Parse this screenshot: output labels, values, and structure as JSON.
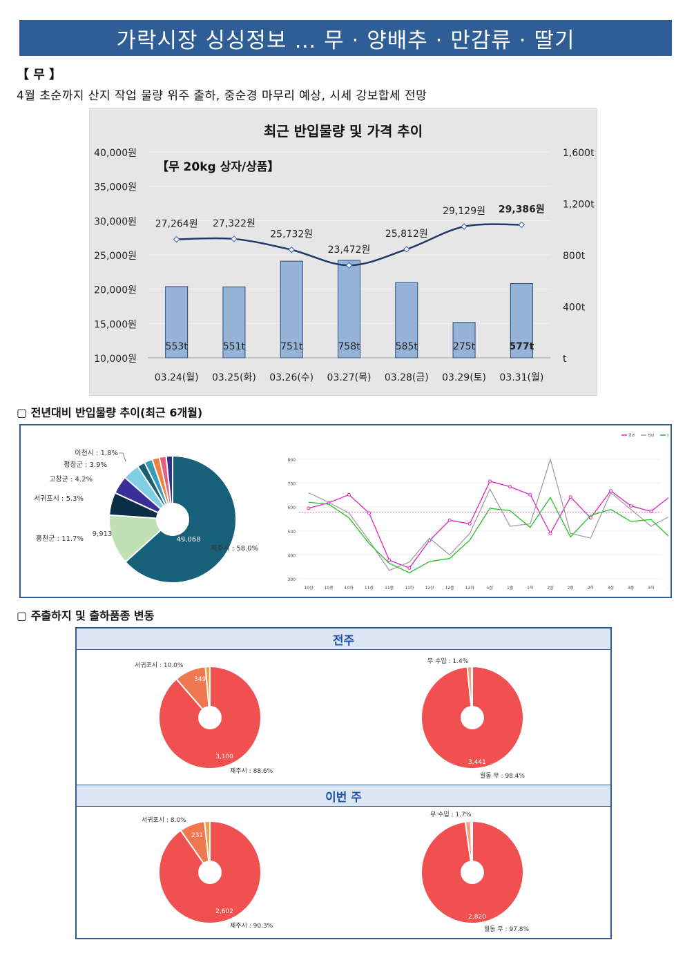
{
  "banner": {
    "title": "가락시장 싱싱정보 … 무 · 양배추 · 만감류 · 딸기"
  },
  "section": {
    "label": "【 무 】",
    "summary": "4월 초순까지 산지 작업 물량 위주 출하, 중순경 마무리 예상, 시세 강보합세 전망"
  },
  "main_chart": {
    "title": "최근 반입물량 및 가격 추이",
    "inner_label": "【무 20kg 상자/상품】"
  },
  "sub1": {
    "label": "▢ 전년대비 반입물량 추이(최근 6개월)"
  },
  "sub2": {
    "label": "▢ 주출하지 및 출하품종 변동"
  },
  "panel": {
    "prev_week": "전주",
    "this_week": "이번 주"
  },
  "colors": {
    "banner": "#2f5e96",
    "bar": "#95b3d7",
    "line": "#1f3864",
    "pie_main": "#f05050",
    "pie_second": "#f07850",
    "pie_third": "#f4a040"
  },
  "chart_data": [
    {
      "type": "bar+line",
      "title": "최근 반입물량 및 가격 추이",
      "categories": [
        "03.24(월)",
        "03.25(화)",
        "03.26(수)",
        "03.27(목)",
        "03.28(금)",
        "03.29(토)",
        "03.31(월)"
      ],
      "bar_series": {
        "values": [
          553,
          551,
          751,
          758,
          585,
          275,
          577
        ],
        "labels": [
          "553t",
          "551t",
          "751t",
          "758t",
          "585t",
          "275t",
          "577t"
        ]
      },
      "line_series": {
        "values": [
          27264,
          27322,
          25732,
          23472,
          25812,
          29129,
          29386
        ],
        "labels": [
          "27,264원",
          "27,322원",
          "25,732원",
          "23,472원",
          "25,812원",
          "29,129원",
          "29,386원"
        ]
      },
      "y_left": {
        "ticks": [
          "40,000원",
          "35,000원",
          "30,000원",
          "25,000원",
          "20,000원",
          "15,000원",
          "10,000원"
        ],
        "ylim": [
          10000,
          40000
        ]
      },
      "y_right": {
        "ticks": [
          "1,600t",
          "1,200t",
          "800t",
          "400t",
          "t"
        ],
        "ylim": [
          0,
          1600
        ]
      }
    },
    {
      "type": "pie",
      "slices": [
        {
          "name": "제주시",
          "label": "제주시 : 58.0%",
          "percent": 58.0,
          "value_label": "49,068",
          "color": "#16607a"
        },
        {
          "name": "홍천군",
          "label": "홍천군 : 11.7%",
          "percent": 11.7,
          "value_label": "9,913",
          "color": "#bfe1b5"
        },
        {
          "name": "서귀포시",
          "label": "서귀포시 : 5.3%",
          "percent": 5.3,
          "value_label": "",
          "color": "#0b2e45"
        },
        {
          "name": "고창군",
          "label": "고창군 : 4.2%",
          "percent": 4.2,
          "value_label": "",
          "color": "#3a2e98"
        },
        {
          "name": "평창군",
          "label": "평창군 : 3.9%",
          "percent": 3.9,
          "value_label": "",
          "color": "#7ecfe6"
        },
        {
          "name": "이천시",
          "label": "이천시 : 1.8%",
          "percent": 1.8,
          "value_label": "",
          "color": "#1b5e72"
        },
        {
          "name": "기타1",
          "label": "",
          "percent": 1.9,
          "value_label": "",
          "color": "#3a9ab8"
        },
        {
          "name": "기타2",
          "label": "",
          "percent": 1.7,
          "value_label": "",
          "color": "#f08040"
        },
        {
          "name": "기타3",
          "label": "",
          "percent": 1.6,
          "value_label": "",
          "color": "#e86080"
        },
        {
          "name": "기타4",
          "label": "",
          "percent": 1.5,
          "value_label": "",
          "color": "#30308a"
        }
      ]
    },
    {
      "type": "line",
      "legend": [
        "금년",
        "전년",
        "평년"
      ],
      "legend_position": "top-right",
      "x": [
        "10상",
        "10중",
        "10하",
        "11상",
        "11중",
        "11하",
        "12상",
        "12중",
        "12하",
        "1상",
        "1중",
        "1하",
        "2상",
        "2중",
        "2하",
        "3상",
        "3중",
        "3하",
        "4상"
      ],
      "yticks": [
        "800",
        "700",
        "600",
        "500",
        "400",
        "300"
      ],
      "ylim": [
        300,
        800
      ],
      "series": [
        {
          "name": "금년",
          "color": "#e020c0",
          "values": [
            595,
            618,
            652,
            575,
            378,
            345,
            460,
            545,
            530,
            708,
            685,
            652,
            490,
            642,
            555,
            668,
            605,
            582,
            648
          ]
        },
        {
          "name": "전년",
          "color": "#a0a0a0",
          "values": [
            660,
            620,
            575,
            460,
            335,
            370,
            470,
            400,
            490,
            675,
            520,
            530,
            800,
            490,
            470,
            660,
            590,
            520,
            565
          ]
        },
        {
          "name": "평년",
          "color": "#20c020",
          "values": [
            620,
            612,
            555,
            448,
            365,
            325,
            372,
            385,
            462,
            595,
            585,
            515,
            640,
            475,
            565,
            590,
            540,
            548,
            468
          ]
        }
      ],
      "reference_line": 578
    },
    {
      "type": "pie",
      "group": "전주",
      "slices": [
        {
          "name": "제주시",
          "label": "제주시 : 88.6%",
          "percent": 88.6,
          "value_label": "3,100",
          "color": "#f05050"
        },
        {
          "name": "서귀포시",
          "label": "서귀포시 : 10.0%",
          "percent": 10.0,
          "value_label": "349",
          "color": "#f07850"
        },
        {
          "name": "기타",
          "label": "",
          "percent": 1.4,
          "value_label": "",
          "color": "#f4a040"
        }
      ]
    },
    {
      "type": "pie",
      "group": "전주",
      "slices": [
        {
          "name": "월동 무",
          "label": "월동 무 : 98.4%",
          "percent": 98.4,
          "value_label": "3,441",
          "color": "#f05050"
        },
        {
          "name": "무 수입",
          "label": "무 수입 : 1.4%",
          "percent": 1.4,
          "value_label": "",
          "color": "#f4a080"
        },
        {
          "name": "기타",
          "label": "",
          "percent": 0.2,
          "value_label": "",
          "color": "#f4a040"
        }
      ]
    },
    {
      "type": "pie",
      "group": "이번 주",
      "slices": [
        {
          "name": "제주시",
          "label": "제주시 : 90.3%",
          "percent": 90.3,
          "value_label": "2,602",
          "color": "#f05050"
        },
        {
          "name": "서귀포시",
          "label": "서귀포시 : 8.0%",
          "percent": 8.0,
          "value_label": "231",
          "color": "#f07850"
        },
        {
          "name": "기타",
          "label": "",
          "percent": 1.7,
          "value_label": "",
          "color": "#f4a040"
        }
      ]
    },
    {
      "type": "pie",
      "group": "이번 주",
      "slices": [
        {
          "name": "월동 무",
          "label": "월동 무 : 97.8%",
          "percent": 97.8,
          "value_label": "2,820",
          "color": "#f05050"
        },
        {
          "name": "무 수입",
          "label": "무 수입 : 1.7%",
          "percent": 1.7,
          "value_label": "",
          "color": "#f4a080"
        },
        {
          "name": "기타",
          "label": "",
          "percent": 0.5,
          "value_label": "",
          "color": "#f4a040"
        }
      ]
    }
  ]
}
